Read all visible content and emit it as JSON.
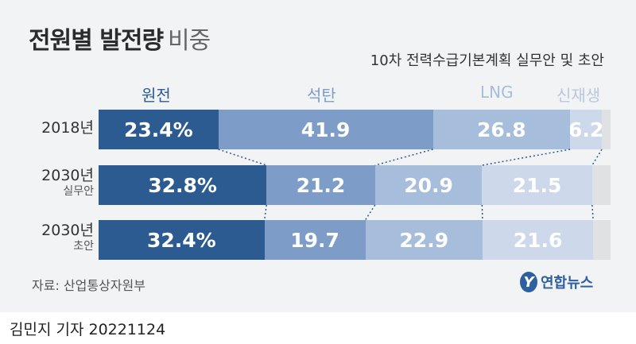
{
  "header": {
    "title": "전원별 발전량",
    "title_suffix": "비중",
    "subtitle": "10차 전력수급기본계획 실무안 및 초안"
  },
  "footer": {
    "source": "자료: 산업통상자원부",
    "logo_mark": "Y",
    "logo_text": "연합뉴스",
    "byline": "김민지 기자  20221124"
  },
  "colors": {
    "nuclear": "#2c5b92",
    "coal": "#7d9cc8",
    "lng": "#a6bddb",
    "renewable": "#cdd9ea",
    "other": "#e0e1e3",
    "connector": "#2c5b92"
  },
  "chart_data": {
    "type": "bar",
    "orientation": "horizontal",
    "stacked": true,
    "unit": "%",
    "categories": [
      {
        "label": "2018년",
        "sublabel": ""
      },
      {
        "label": "2030년",
        "sublabel": "실무안"
      },
      {
        "label": "2030년",
        "sublabel": "초안"
      }
    ],
    "series": [
      {
        "name": "원전",
        "values": [
          23.4,
          32.8,
          32.4
        ],
        "labels": [
          "23.4%",
          "32.8%",
          "32.4%"
        ],
        "legend_color": "#2c5b92"
      },
      {
        "name": "석탄",
        "values": [
          41.9,
          21.2,
          19.7
        ],
        "labels": [
          "41.9",
          "21.2",
          "19.7"
        ],
        "legend_color": "#7d9cc8"
      },
      {
        "name": "LNG",
        "values": [
          26.8,
          20.9,
          22.9
        ],
        "labels": [
          "26.8",
          "20.9",
          "22.9"
        ],
        "legend_color": "#a6bddb"
      },
      {
        "name": "신재생",
        "values": [
          6.2,
          21.5,
          21.6
        ],
        "labels": [
          "6.2",
          "21.5",
          "21.6"
        ],
        "legend_color": "#b9c8dd"
      },
      {
        "name": "",
        "values": [
          1.7,
          3.6,
          3.4
        ],
        "labels": [
          "",
          "",
          ""
        ],
        "legend_color": "#e0e1e3"
      }
    ],
    "xlim": [
      0,
      100
    ],
    "legend_position": "top"
  }
}
